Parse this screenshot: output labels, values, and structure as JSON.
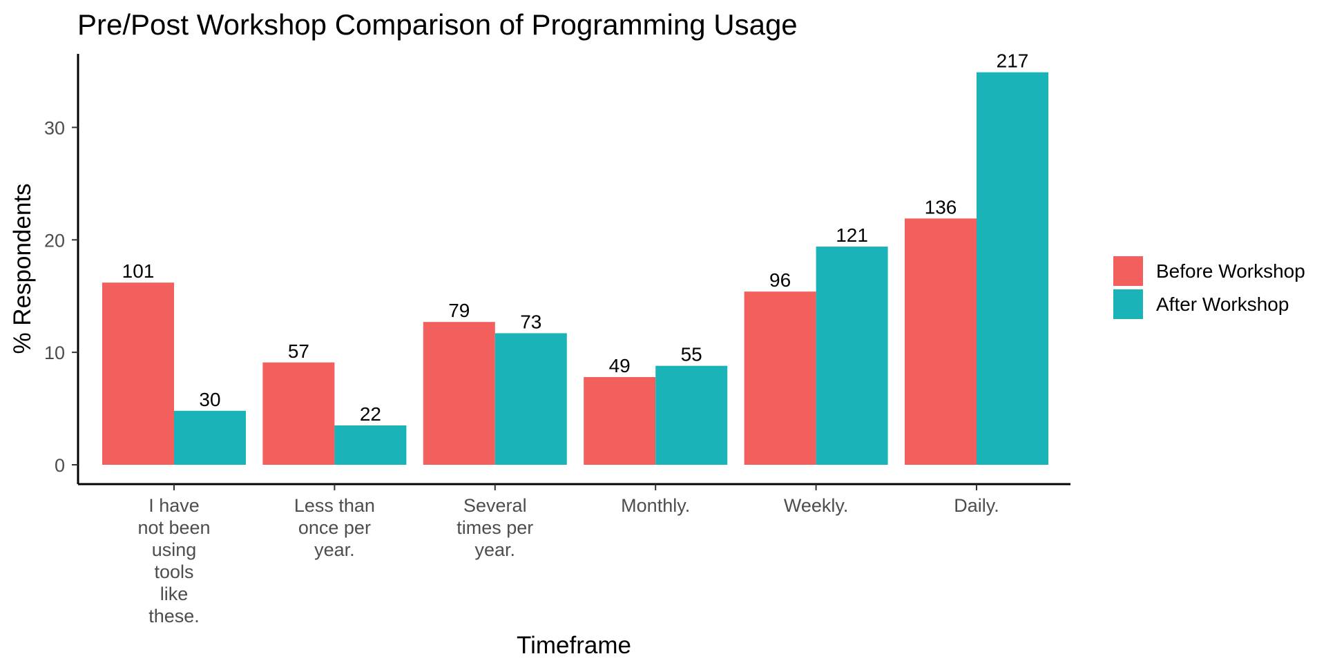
{
  "chart_data": {
    "type": "bar",
    "title": "Pre/Post Workshop Comparison of Programming Usage",
    "xlabel": "Timeframe",
    "ylabel": "% Respondents",
    "ylim": [
      0,
      35
    ],
    "yticks": [
      "0",
      "10",
      "20",
      "30"
    ],
    "ytick_values": [
      0,
      10,
      20,
      30
    ],
    "categories": [
      "I have not been using tools like these.",
      "Less than once per year.",
      "Several times per year.",
      "Monthly.",
      "Weekly.",
      "Daily."
    ],
    "category_lines": [
      [
        "I have",
        "not been",
        "using",
        "tools",
        "like",
        "these."
      ],
      [
        "Less than",
        "once per",
        "year."
      ],
      [
        "Several",
        "times per",
        "year."
      ],
      [
        "Monthly."
      ],
      [
        "Weekly."
      ],
      [
        "Daily."
      ]
    ],
    "series": [
      {
        "name": "Before Workshop",
        "color": "#F25F5C",
        "values": [
          16.2,
          9.1,
          12.7,
          7.8,
          15.4,
          21.9
        ],
        "labels": [
          "101",
          "57",
          "79",
          "49",
          "96",
          "136"
        ]
      },
      {
        "name": "After Workshop",
        "color": "#1AB3B8",
        "values": [
          4.8,
          3.5,
          11.7,
          8.8,
          19.4,
          34.9
        ],
        "labels": [
          "30",
          "22",
          "73",
          "55",
          "121",
          "217"
        ]
      }
    ],
    "legend_position": "right",
    "grid": false
  }
}
